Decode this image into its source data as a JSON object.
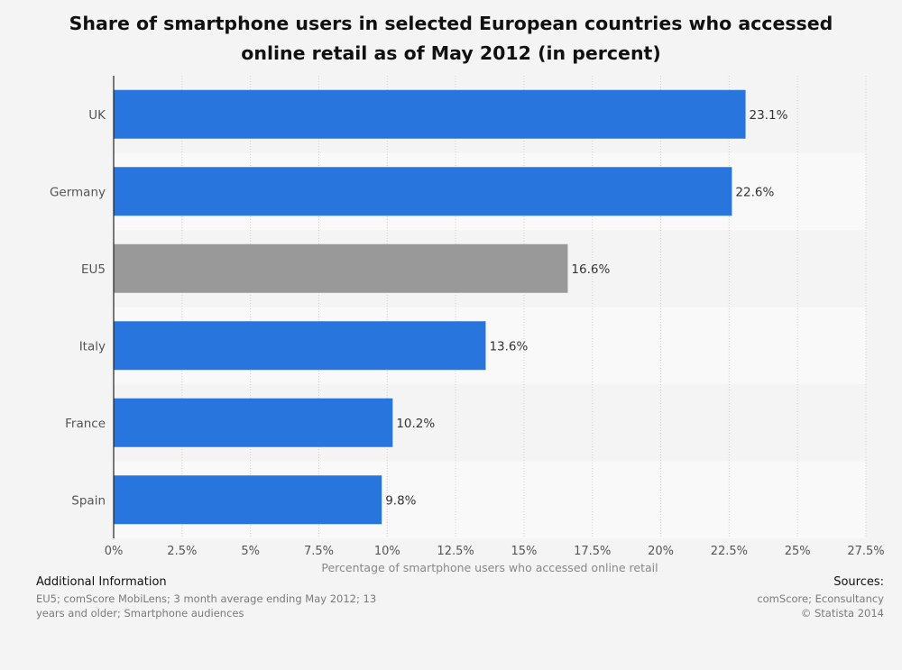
{
  "chart_data": {
    "type": "bar",
    "orientation": "horizontal",
    "title_line1": "Share of smartphone users in selected European countries who accessed",
    "title_line2": "online retail as of May 2012 (in percent)",
    "categories": [
      "UK",
      "Germany",
      "EU5",
      "Italy",
      "France",
      "Spain"
    ],
    "values": [
      23.1,
      22.6,
      16.6,
      13.6,
      10.2,
      9.8
    ],
    "value_labels": [
      "23.1%",
      "22.6%",
      "16.6%",
      "13.6%",
      "10.2%",
      "9.8%"
    ],
    "bar_colors": [
      "#2876dd",
      "#2876dd",
      "#999999",
      "#2876dd",
      "#2876dd",
      "#2876dd"
    ],
    "xlabel": "Percentage of smartphone users who accessed online retail",
    "xlim": [
      0,
      27.5
    ],
    "xticks": [
      0,
      2.5,
      5,
      7.5,
      10,
      12.5,
      15,
      17.5,
      20,
      22.5,
      25,
      27.5
    ],
    "xtick_labels": [
      "0%",
      "2.5%",
      "5%",
      "7.5%",
      "10%",
      "12.5%",
      "15%",
      "17.5%",
      "20%",
      "22.5%",
      "25%",
      "27.5%"
    ],
    "grid": true
  },
  "footer": {
    "additional_heading": "Additional Information",
    "additional_line1": "EU5; comScore MobiLens; 3 month average ending May 2012; 13",
    "additional_line2": "years and older; Smartphone audiences",
    "sources_heading": "Sources:",
    "sources_line1": "comScore; Econsultancy",
    "sources_line2": "© Statista 2014"
  }
}
